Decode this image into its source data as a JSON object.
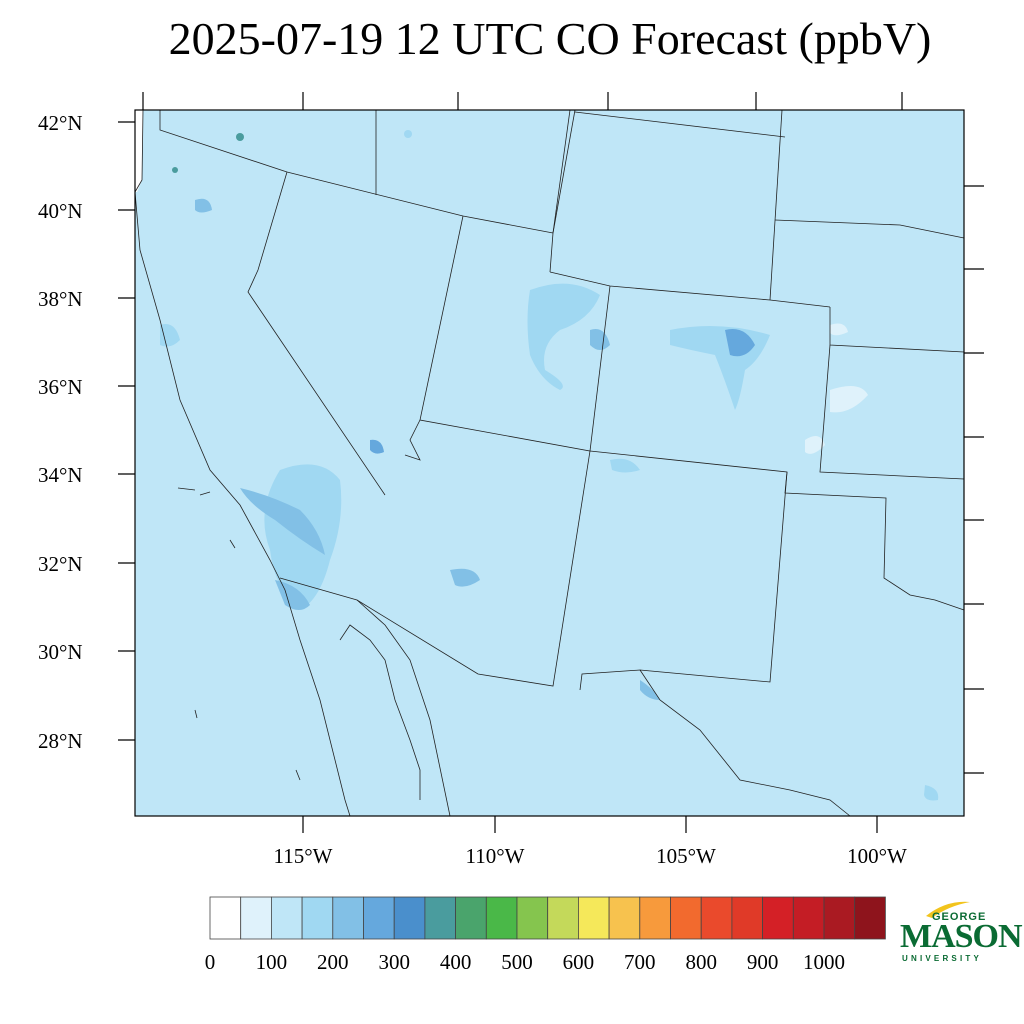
{
  "title": "2025-07-19 12 UTC CO Forecast (ppbV)",
  "map": {
    "background_color": "#bfe6f7",
    "lat_labels": [
      "42°N",
      "40°N",
      "38°N",
      "36°N",
      "34°N",
      "32°N",
      "30°N",
      "28°N"
    ],
    "lon_labels": [
      "115°W",
      "110°W",
      "105°W",
      "100°W"
    ]
  },
  "colorbar": {
    "colors": [
      "#ffffff",
      "#dff2fb",
      "#bfe6f7",
      "#a0d8f2",
      "#82c0e6",
      "#65a8dd",
      "#4a8fcc",
      "#4a9c9e",
      "#4aa46c",
      "#4ab848",
      "#85c54e",
      "#c4d95a",
      "#f5e85a",
      "#f7c24e",
      "#f79a3c",
      "#f26a2e",
      "#ea4a2c",
      "#e03a28",
      "#d42026",
      "#c41d25",
      "#aa1a22",
      "#8e141c"
    ],
    "tick_labels": [
      "0",
      "100",
      "200",
      "300",
      "400",
      "500",
      "600",
      "700",
      "800",
      "900",
      "1000"
    ]
  },
  "logo": {
    "line1": "GEORGE",
    "line2": "MASON",
    "line3": "UNIVERSITY",
    "color": "#0a6b33",
    "accent": "#f2c41c"
  }
}
